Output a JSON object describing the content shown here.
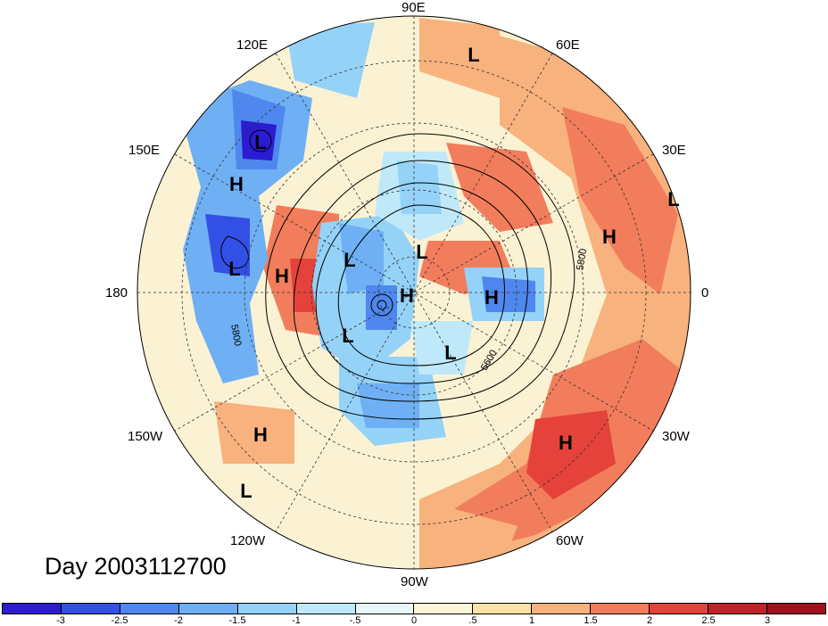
{
  "title": "Day 2003112700",
  "lon_labels": [
    {
      "text": "90E"
    },
    {
      "text": "60E"
    },
    {
      "text": "120E"
    },
    {
      "text": "30E"
    },
    {
      "text": "150E"
    },
    {
      "text": "0"
    },
    {
      "text": "180"
    },
    {
      "text": "30W"
    },
    {
      "text": "150W"
    },
    {
      "text": "60W"
    },
    {
      "text": "120W"
    },
    {
      "text": "90W"
    }
  ],
  "pressure_centers": [
    "L",
    "L",
    "H",
    "H",
    "L",
    "L",
    "H",
    "L",
    "H",
    "L",
    "H",
    "L",
    "H",
    "L",
    "L",
    "L",
    "H",
    "H",
    "L"
  ],
  "contour_labels": [
    "5800",
    "5800",
    "5600"
  ],
  "colorbar": {
    "ticks": [
      "-3",
      "-2.5",
      "-2",
      "-1.5",
      "-1",
      "-.5",
      "0",
      ".5",
      "1",
      "1.5",
      "2",
      "2.5",
      "3"
    ],
    "colors": [
      "#2b1bd2",
      "#3350e6",
      "#4f87ee",
      "#6fb0f4",
      "#95d2f7",
      "#bfe9f9",
      "#e7f6f8",
      "#fbf6d8",
      "#fbe2a6",
      "#f8b27e",
      "#f27d5c",
      "#e5423b",
      "#c0222a",
      "#a0101d"
    ]
  }
}
